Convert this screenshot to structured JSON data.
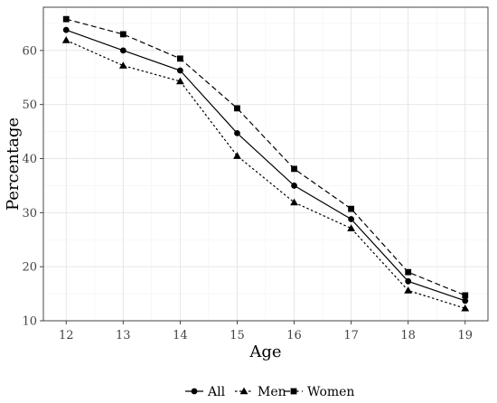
{
  "chart_data": {
    "type": "line",
    "xlabel": "Age",
    "ylabel": "Percentage",
    "x": [
      12,
      13,
      14,
      15,
      16,
      17,
      18,
      19
    ],
    "xlim": [
      11.6,
      19.4
    ],
    "ylim": [
      10,
      68
    ],
    "yticks": [
      10,
      20,
      30,
      40,
      50,
      60
    ],
    "grid": true,
    "legend_position": "bottom",
    "series": [
      {
        "name": "All",
        "marker": "circle",
        "line_style": "solid",
        "values": [
          63.8,
          60.0,
          56.3,
          44.7,
          35.0,
          28.8,
          17.3,
          13.7
        ]
      },
      {
        "name": "Men",
        "marker": "triangle",
        "line_style": "dotted",
        "values": [
          61.9,
          57.2,
          54.3,
          40.5,
          31.9,
          27.1,
          15.6,
          12.3
        ]
      },
      {
        "name": "Women",
        "marker": "square",
        "line_style": "dashed",
        "values": [
          65.8,
          63.0,
          58.5,
          49.3,
          38.1,
          30.7,
          19.0,
          14.7
        ]
      }
    ],
    "color": "#000000",
    "panel_border_color": "#333333"
  }
}
